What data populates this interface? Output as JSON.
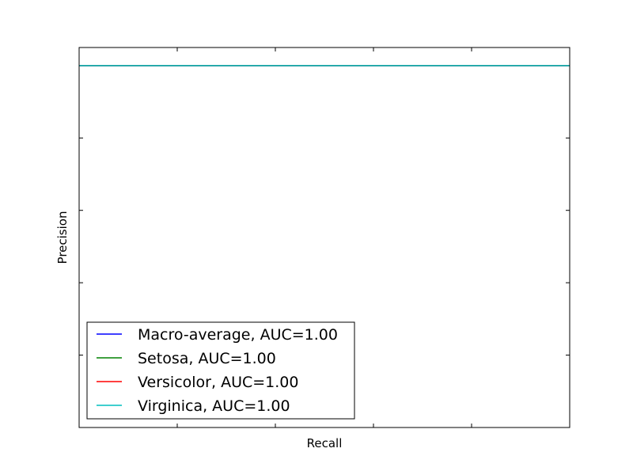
{
  "chart_data": {
    "type": "line",
    "title": "",
    "xlabel": "Recall",
    "ylabel": "Precision",
    "xlim": [
      0,
      1
    ],
    "ylim": [
      0,
      1.05
    ],
    "grid": false,
    "legend_position": "lower-left",
    "series": [
      {
        "name": "Macro-average, AUC=1.00",
        "color": "#0000ff",
        "x": [
          0,
          1
        ],
        "y": [
          1.0,
          1.0
        ]
      },
      {
        "name": "Setosa, AUC=1.00",
        "color": "#008000",
        "x": [
          0,
          1
        ],
        "y": [
          1.0,
          1.0
        ]
      },
      {
        "name": "Versicolor, AUC=1.00",
        "color": "#ff0000",
        "x": [
          0,
          1
        ],
        "y": [
          1.0,
          1.0
        ]
      },
      {
        "name": "Virginica, AUC=1.00",
        "color": "#00bfbf",
        "x": [
          0,
          1
        ],
        "y": [
          1.0,
          1.0
        ]
      }
    ]
  }
}
